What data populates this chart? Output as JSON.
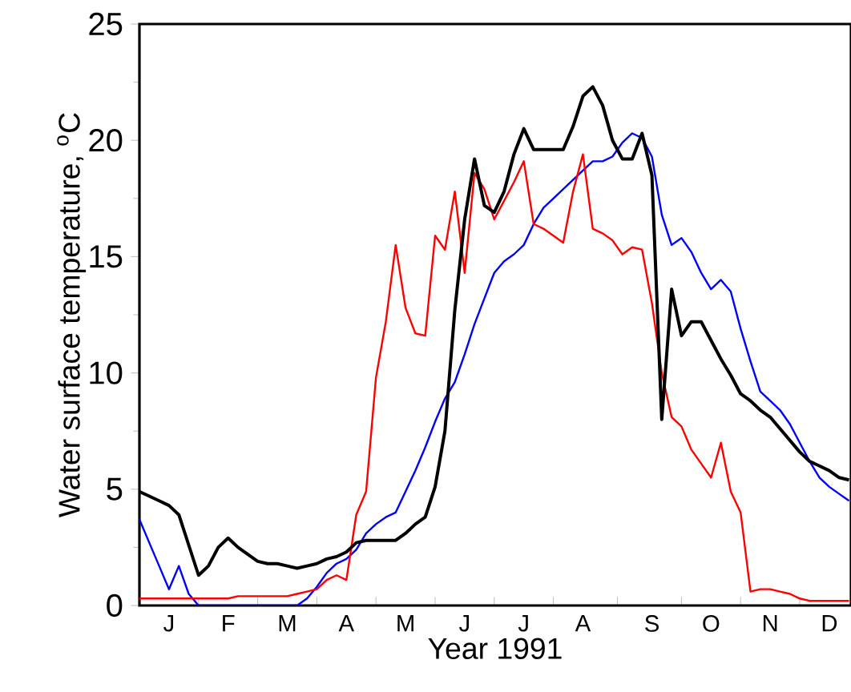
{
  "chart_data": {
    "type": "line",
    "xlabel": "Year 1991",
    "ylabel": "Water surface temperature, $^{o}$C",
    "categories": [
      null,
      null,
      null,
      "J",
      null,
      null,
      null,
      null,
      null,
      "F",
      null,
      null,
      null,
      null,
      null,
      "M",
      null,
      null,
      null,
      null,
      null,
      "A",
      null,
      null,
      null,
      null,
      null,
      "M",
      null,
      null,
      null,
      null,
      null,
      "J",
      null,
      null,
      null,
      null,
      null,
      "J",
      null,
      null,
      null,
      null,
      null,
      "A",
      null,
      null,
      null,
      null,
      null,
      null,
      "S",
      null,
      null,
      null,
      null,
      null,
      "O",
      null,
      null,
      null,
      null,
      null,
      "N",
      null,
      null,
      null,
      null,
      null,
      "D",
      null,
      null
    ],
    "ylim": [
      0,
      25
    ],
    "yticks": [
      0,
      5,
      10,
      15,
      20,
      25
    ],
    "series": [
      {
        "color": "#0000ff",
        "values": [
          3.7,
          2.7,
          1.7,
          0.7,
          1.7,
          0.5,
          0,
          0,
          0,
          0,
          0,
          0,
          0,
          0,
          0,
          0,
          0,
          0.3,
          0.8,
          1.4,
          1.8,
          2.0,
          2.4,
          3.1,
          3.5,
          3.8,
          4.0,
          4.9,
          5.8,
          6.8,
          7.9,
          8.9,
          9.6,
          10.8,
          12.1,
          13.2,
          14.3,
          14.8,
          15.1,
          15.5,
          16.4,
          17.1,
          17.5,
          17.9,
          18.3,
          18.7,
          19.1,
          19.1,
          19.3,
          19.9,
          20.3,
          20.1,
          19.3,
          16.8,
          15.5,
          15.8,
          15.2,
          14.3,
          13.6,
          14.0,
          13.5,
          11.9,
          10.5,
          9.2,
          8.8,
          8.4,
          7.8,
          7.0,
          6.2,
          5.5,
          5.1,
          4.8,
          4.5
        ]
      },
      {
        "color": "#ff0000",
        "values": [
          0.3,
          0.3,
          0.3,
          0.3,
          0.3,
          0.3,
          0.3,
          0.3,
          0.3,
          0.3,
          0.4,
          0.4,
          0.4,
          0.4,
          0.4,
          0.4,
          0.5,
          0.6,
          0.7,
          1.1,
          1.3,
          1.1,
          3.9,
          4.9,
          9.8,
          12.2,
          15.5,
          12.8,
          11.7,
          11.6,
          15.9,
          15.3,
          17.8,
          14.3,
          18.6,
          17.9,
          16.6,
          17.4,
          18.2,
          19.1,
          16.4,
          16.2,
          15.9,
          15.6,
          17.8,
          19.4,
          16.2,
          16.0,
          15.7,
          15.1,
          15.4,
          15.3,
          13.0,
          10.0,
          8.1,
          7.7,
          6.7,
          6.1,
          5.5,
          7.0,
          4.9,
          4.0,
          0.6,
          0.7,
          0.7,
          0.6,
          0.5,
          0.3,
          0.2,
          0.2,
          0.2,
          0.2,
          0.2
        ]
      },
      {
        "color": "#000000",
        "values": [
          4.9,
          4.7,
          4.5,
          4.3,
          3.9,
          2.6,
          1.3,
          1.7,
          2.5,
          2.9,
          2.5,
          2.2,
          1.9,
          1.8,
          1.8,
          1.7,
          1.6,
          1.7,
          1.8,
          2.0,
          2.1,
          2.3,
          2.7,
          2.8,
          2.8,
          2.8,
          2.8,
          3.1,
          3.5,
          3.8,
          5.1,
          7.5,
          12.7,
          16.6,
          19.2,
          17.2,
          16.9,
          17.8,
          19.4,
          20.5,
          19.6,
          19.6,
          19.6,
          19.6,
          20.6,
          21.9,
          22.3,
          21.5,
          20.0,
          19.2,
          19.2,
          20.3,
          18.5,
          8.0,
          13.6,
          11.6,
          12.2,
          12.2,
          11.4,
          10.6,
          9.9,
          9.1,
          8.8,
          8.4,
          8.1,
          7.6,
          7.1,
          6.6,
          6.2,
          6.0,
          5.8,
          5.5,
          5.4
        ]
      }
    ]
  }
}
